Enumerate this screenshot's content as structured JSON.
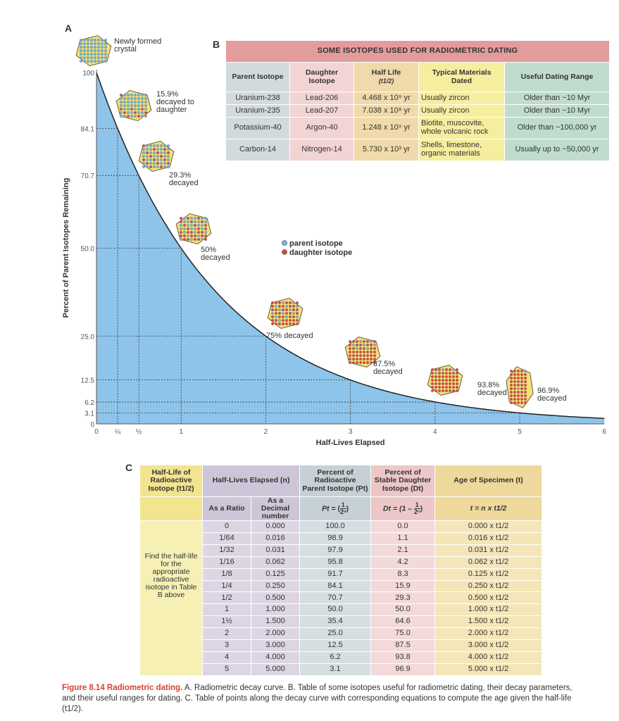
{
  "panels": {
    "a": "A",
    "b": "B",
    "c": "C"
  },
  "chart_data": {
    "type": "area",
    "xlabel": "Half-Lives Elapsed",
    "ylabel": "Percent of Parent Isotopes Remaining",
    "xlim": [
      0,
      6
    ],
    "ylim": [
      0,
      100
    ],
    "x_ticks": [
      {
        "v": 0,
        "label": "0"
      },
      {
        "v": 0.25,
        "label": "¼"
      },
      {
        "v": 0.5,
        "label": "½"
      },
      {
        "v": 1,
        "label": "1"
      },
      {
        "v": 2,
        "label": "2"
      },
      {
        "v": 3,
        "label": "3"
      },
      {
        "v": 4,
        "label": "4"
      },
      {
        "v": 5,
        "label": "5"
      },
      {
        "v": 6,
        "label": "6"
      }
    ],
    "y_ticks": [
      {
        "v": 0,
        "label": "0"
      },
      {
        "v": 3.1,
        "label": "3.1"
      },
      {
        "v": 6.2,
        "label": "6.2"
      },
      {
        "v": 12.5,
        "label": "12.5"
      },
      {
        "v": 25,
        "label": "25.0"
      },
      {
        "v": 50,
        "label": "50.0"
      },
      {
        "v": 70.7,
        "label": "70.7"
      },
      {
        "v": 84.1,
        "label": "84.1"
      },
      {
        "v": 100,
        "label": "100"
      }
    ],
    "curve": "100 x (1/2)^n",
    "reference_points": [
      {
        "x": 0.25,
        "y": 84.1
      },
      {
        "x": 0.5,
        "y": 70.7
      },
      {
        "x": 1,
        "y": 50
      },
      {
        "x": 2,
        "y": 25
      },
      {
        "x": 3,
        "y": 12.5
      },
      {
        "x": 4,
        "y": 6.2
      },
      {
        "x": 5,
        "y": 3.1
      }
    ],
    "fill_color": "#8ec4ea",
    "crystals": [
      {
        "label": [
          "Newly formed",
          "crystal"
        ],
        "decayed": 0
      },
      {
        "label": [
          "15.9%",
          "decayed to",
          "daughter"
        ],
        "decayed": 0.159
      },
      {
        "label": [
          "29.3%",
          "decayed"
        ],
        "decayed": 0.293
      },
      {
        "label": [
          "50%",
          "decayed"
        ],
        "decayed": 0.5
      },
      {
        "label": [
          "75% decayed"
        ],
        "decayed": 0.75
      },
      {
        "label": [
          "87.5%",
          "decayed"
        ],
        "decayed": 0.875
      },
      {
        "label": [
          "93.8%",
          "decayed"
        ],
        "decayed": 0.938
      },
      {
        "label": [
          "96.9%",
          "decayed"
        ],
        "decayed": 0.969
      }
    ],
    "legend": [
      {
        "label": "parent isotope",
        "color": "#6cb8e8"
      },
      {
        "label": "daughter isotope",
        "color": "#e0453a"
      }
    ]
  },
  "table_b": {
    "title": "SOME ISOTOPES USED FOR RADIOMETRIC DATING",
    "headers": [
      "Parent Isotope",
      "Daughter Isotope",
      "Half Life",
      "Typical Materials Dated",
      "Useful Dating Range"
    ],
    "half_life_sub": "(t1/2)",
    "rows": [
      [
        "Uranium-238",
        "Lead-206",
        "4.468 x 10⁹ yr",
        "Usually zircon",
        "Older than ~10 Myr"
      ],
      [
        "Uranium-235",
        "Lead-207",
        "7.038 x 10⁸ yr",
        "Usually zircon",
        "Older than ~10 Myr"
      ],
      [
        "Potassium-40",
        "Argon-40",
        "1.248 x 10⁹ yr",
        "Biotite, muscovite, whole volcanic rock",
        "Older than ~100,000 yr"
      ],
      [
        "Carbon-14",
        "Nitrogen-14",
        "5.730 x 10³ yr",
        "Shells, limestone, organic materials",
        "Usually up to ~50,000 yr"
      ]
    ]
  },
  "table_c": {
    "headers": [
      "Half-Life of Radioactive Isotope (t1/2)",
      "Half-Lives Elapsed (n)",
      "Percent of Radioactive Parent Isotope (Pt)",
      "Percent of Stable Daughter Isotope (Dt)",
      "Age of Specimen (t)"
    ],
    "sub": {
      "ratio": "As a Ratio",
      "decimal": "As a Decimal number",
      "p_formula": "Pt =",
      "d_formula": "Dt = (1 –",
      "t_formula": "t = n x t1/2",
      "frac_num": "1",
      "frac_den": "2ⁿ"
    },
    "note": "Find the half-life for the appropriate radioactive isotope in Table B above",
    "rows": [
      [
        "0",
        "0.000",
        "100.0",
        "0.0",
        "0.000 x t1/2"
      ],
      [
        "1/64",
        "0.016",
        "98.9",
        "1.1",
        "0.016 x t1/2"
      ],
      [
        "1/32",
        "0.031",
        "97.9",
        "2.1",
        "0.031 x t1/2"
      ],
      [
        "1/16",
        "0.062",
        "95.8",
        "4.2",
        "0.062 x t1/2"
      ],
      [
        "1/8",
        "0.125",
        "91.7",
        "8.3",
        "0.125 x t1/2"
      ],
      [
        "1/4",
        "0.250",
        "84.1",
        "15.9",
        "0.250 x t1/2"
      ],
      [
        "1/2",
        "0.500",
        "70.7",
        "29.3",
        "0.500 x t1/2"
      ],
      [
        "1",
        "1.000",
        "50.0",
        "50.0",
        "1.000 x t1/2"
      ],
      [
        "1½",
        "1.500",
        "35.4",
        "64.6",
        "1.500 x t1/2"
      ],
      [
        "2",
        "2.000",
        "25.0",
        "75.0",
        "2.000 x t1/2"
      ],
      [
        "3",
        "3.000",
        "12.5",
        "87.5",
        "3.000 x t1/2"
      ],
      [
        "4",
        "4.000",
        "6.2",
        "93.8",
        "4.000 x t1/2"
      ],
      [
        "5",
        "5.000",
        "3.1",
        "96.9",
        "5.000 x t1/2"
      ]
    ]
  },
  "caption": {
    "figure": "Figure 8.14",
    "title": "Radiometric dating.",
    "text": " A. Radiometric decay curve. B. Table of some isotopes useful for radiometric dating, their decay parameters, and their useful ranges for dating. C. Table of points along the decay curve with corresponding equations to compute the age given the half-life (t1/2)."
  }
}
